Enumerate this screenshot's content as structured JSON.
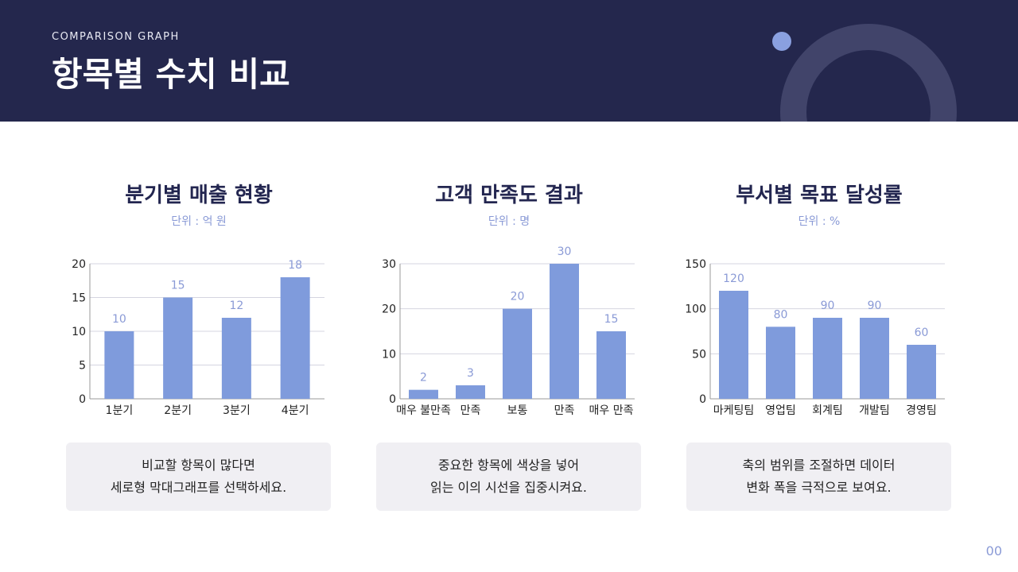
{
  "header": {
    "eyebrow": "COMPARISON GRAPH",
    "title": "항목별 수치 비교"
  },
  "colors": {
    "header_bg": "#24274d",
    "bar": "#7f9bdc",
    "label": "#8a9ad6",
    "grid": "#d5d5e0",
    "card_bg": "#f0eff3"
  },
  "chart_data": [
    {
      "type": "bar",
      "title": "분기별 매출 현황",
      "unit": "단위 : 억 원",
      "categories": [
        "1분기",
        "2분기",
        "3분기",
        "4분기"
      ],
      "values": [
        10,
        15,
        12,
        18
      ],
      "ylim": [
        0,
        20
      ],
      "yticks": [
        0,
        5,
        10,
        15,
        20
      ],
      "grid": true
    },
    {
      "type": "bar",
      "title": "고객 만족도 결과",
      "unit": "단위 : 명",
      "categories": [
        "매우 불만족",
        "만족",
        "보통",
        "만족",
        "매우 만족"
      ],
      "values": [
        2,
        3,
        20,
        30,
        15
      ],
      "ylim": [
        0,
        30
      ],
      "yticks": [
        0,
        10,
        20,
        30
      ],
      "grid": true
    },
    {
      "type": "bar",
      "title": "부서별 목표 달성률",
      "unit": "단위 : %",
      "categories": [
        "마케팅팀",
        "영업팀",
        "회계팀",
        "개발팀",
        "경영팀"
      ],
      "values": [
        120,
        80,
        90,
        90,
        60
      ],
      "ylim": [
        0,
        150
      ],
      "yticks": [
        0,
        50,
        100,
        150
      ],
      "grid": true
    }
  ],
  "cards": [
    {
      "line1": "비교할 항목이 많다면",
      "line2": "세로형 막대그래프를 선택하세요."
    },
    {
      "line1": "중요한 항목에 색상을 넣어",
      "line2": "읽는 이의 시선을 집중시켜요."
    },
    {
      "line1": "축의 범위를 조절하면 데이터",
      "line2": "변화 폭을 극적으로 보여요."
    }
  ],
  "page_number": "00"
}
